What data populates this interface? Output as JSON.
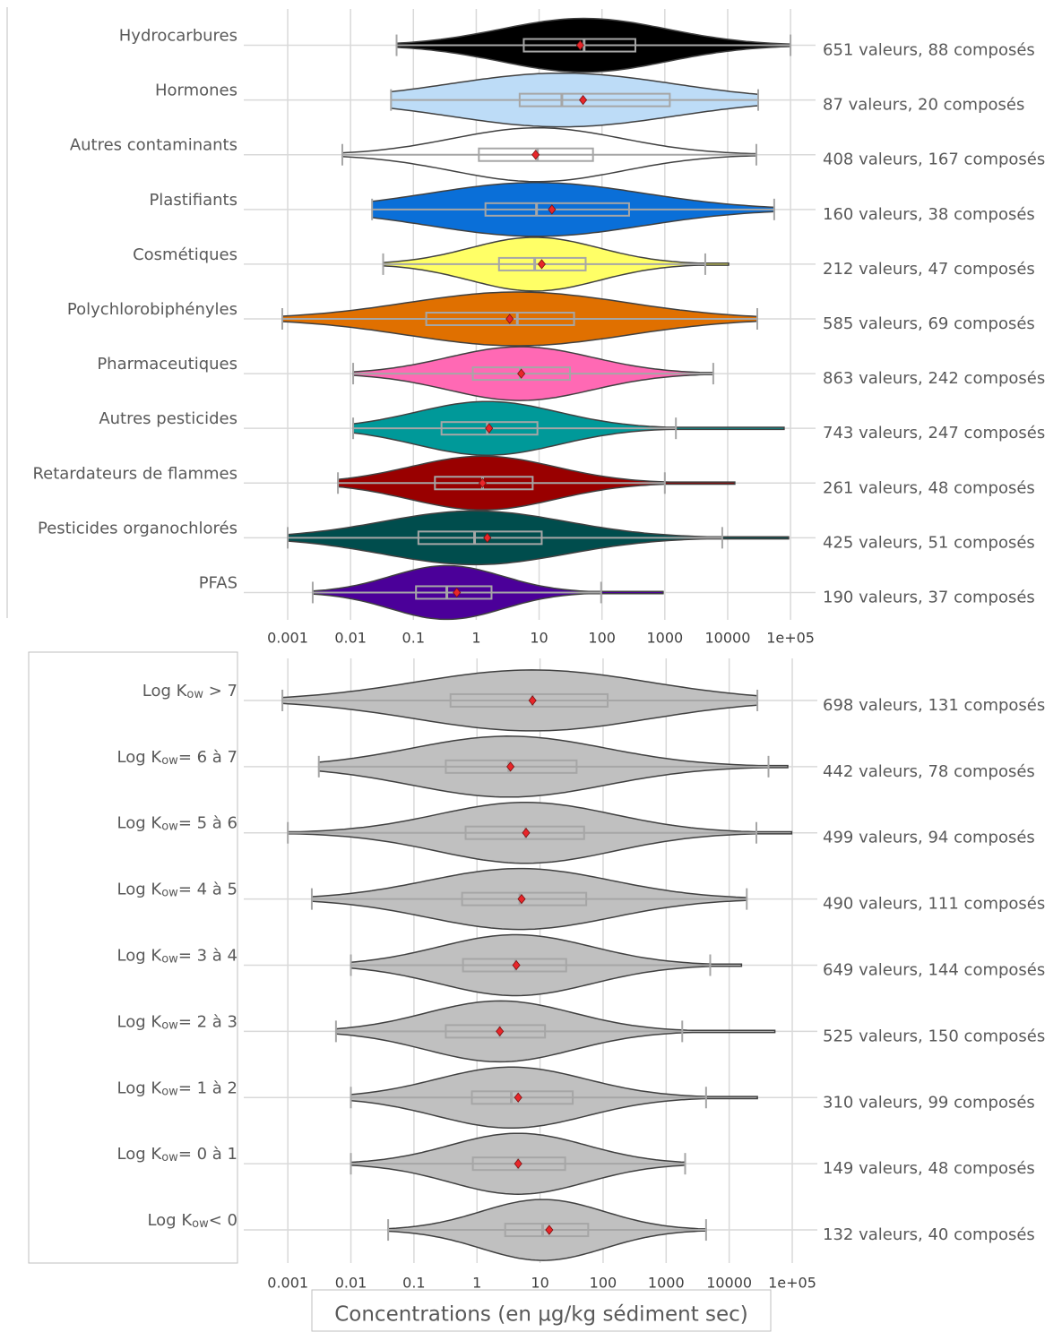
{
  "chart_data": [
    {
      "type": "violin",
      "xscale": "log",
      "xlim": [
        0.0002,
        250000
      ],
      "xticks": [
        0.001,
        0.01,
        0.1,
        1,
        10,
        100,
        1000,
        10000,
        {
          "value": 100000,
          "label": "1e+05"
        }
      ],
      "grid": true,
      "box_color": "#a6a6a6",
      "mean_color": "#e8262a",
      "categories": [
        "Hydrocarbures",
        "Hormones",
        "Autres contaminants",
        "Plastifiants",
        "Cosmétiques",
        "Polychlorobiphényles",
        "Pharmaceutiques",
        "Autres pesticides",
        "Retardateurs de flammes",
        "Pesticides organochlorés",
        "PFAS"
      ],
      "annotations": [
        "651 valeurs, 88 composés",
        "87 valeurs, 20 composés",
        "408 valeurs, 167 composés",
        "160 valeurs, 38 composés",
        "212 valeurs, 47 composés",
        "585 valeurs, 69 composés",
        "863 valeurs, 242 composés",
        "743 valeurs, 247 composés",
        "261 valeurs, 48 composés",
        "425 valeurs, 51 composés",
        "190 valeurs, 37 composés"
      ],
      "colors": [
        "#000000",
        "#bddcf7",
        "#ffffff",
        "#0a6fd8",
        "#ffff66",
        "#e07000",
        "#ff69b4",
        "#009999",
        "#990000",
        "#004d4d",
        "#4b0099"
      ],
      "min": [
        0.054,
        0.044,
        0.0074,
        0.022,
        0.033,
        0.00082,
        0.011,
        0.011,
        0.0063,
        0.001,
        0.0025
      ],
      "q1": [
        5.7,
        4.9,
        1.1,
        1.4,
        2.3,
        0.16,
        0.88,
        0.28,
        0.22,
        0.12,
        0.11
      ],
      "median": [
        52,
        23,
        9.4,
        9.1,
        8.5,
        4.5,
        5,
        1.5,
        1.26,
        0.94,
        0.34
      ],
      "q3": [
        340,
        1200,
        72,
        270,
        55,
        36,
        31,
        9.4,
        7.9,
        11,
        1.75
      ],
      "whisker_high": [
        100000,
        30600,
        28600,
        55000,
        4400,
        29600,
        5900,
        1500,
        1000,
        8200,
        97
      ],
      "max": [
        100000,
        30600,
        28600,
        55000,
        10300,
        29600,
        5900,
        79000,
        13000,
        93000,
        940
      ],
      "mean": [
        45,
        50,
        8.8,
        16,
        11,
        3.4,
        5.2,
        1.6,
        1.26,
        1.5,
        0.49
      ]
    },
    {
      "type": "violin",
      "xscale": "log",
      "xlim": [
        0.0002,
        250000
      ],
      "xticks": [
        0.001,
        0.01,
        0.1,
        1,
        10,
        100,
        1000,
        10000,
        {
          "value": 100000,
          "label": "1e+05"
        }
      ],
      "grid": true,
      "box_color": "#a6a6a6",
      "mean_color": "#e8262a",
      "xlabel": "Concentrations (en µg/kg sédiment sec)",
      "categories": [
        {
          "base": "Log K",
          "sub": "ow",
          "suffix": " > 7"
        },
        {
          "base": "Log K",
          "sub": "ow",
          "suffix": "= 6 à 7"
        },
        {
          "base": "Log K",
          "sub": "ow",
          "suffix": "= 5 à 6"
        },
        {
          "base": "Log K",
          "sub": "ow",
          "suffix": "= 4 à 5"
        },
        {
          "base": "Log K",
          "sub": "ow",
          "suffix": "= 3 à 4"
        },
        {
          "base": "Log K",
          "sub": "ow",
          "suffix": "=  2 à 3"
        },
        {
          "base": "Log K",
          "sub": "ow",
          "suffix": "= 1 à 2"
        },
        {
          "base": "Log K",
          "sub": "ow",
          "suffix": "= 0 à 1"
        },
        {
          "base": "Log K",
          "sub": "ow",
          "suffix": "< 0"
        }
      ],
      "annotations": [
        "698 valeurs, 131 composés",
        "442 valeurs, 78 composés",
        "499 valeurs, 94 composés",
        "490 valeurs, 111 composés",
        "649 valeurs, 144 composés",
        "525 valeurs, 150 composés",
        "310 valeurs, 99 composés",
        "149 valeurs, 48 composés",
        "132 valeurs, 40 composés"
      ],
      "color": "#c0c0c0",
      "min": [
        0.00082,
        0.0031,
        0.001,
        0.0024,
        0.01,
        0.0058,
        0.01,
        0.01,
        0.039
      ],
      "q1": [
        0.38,
        0.32,
        0.66,
        0.58,
        0.6,
        0.32,
        0.83,
        0.86,
        2.8
      ],
      "median": [
        7.6,
        3.2,
        5.9,
        4.8,
        4.1,
        2.3,
        3.5,
        4.5,
        11
      ],
      "q3": [
        118,
        38,
        50,
        54,
        26,
        12,
        33,
        25,
        58
      ],
      "whisker_high": [
        28000,
        42000,
        27000,
        19000,
        5000,
        1800,
        4300,
        2000,
        4300
      ],
      "max": [
        28000,
        85000,
        98000,
        19000,
        15700,
        53000,
        28000,
        2000,
        4300
      ],
      "mean": [
        7.6,
        3.4,
        6,
        5.1,
        4.2,
        2.3,
        4.5,
        4.5,
        14
      ]
    }
  ]
}
